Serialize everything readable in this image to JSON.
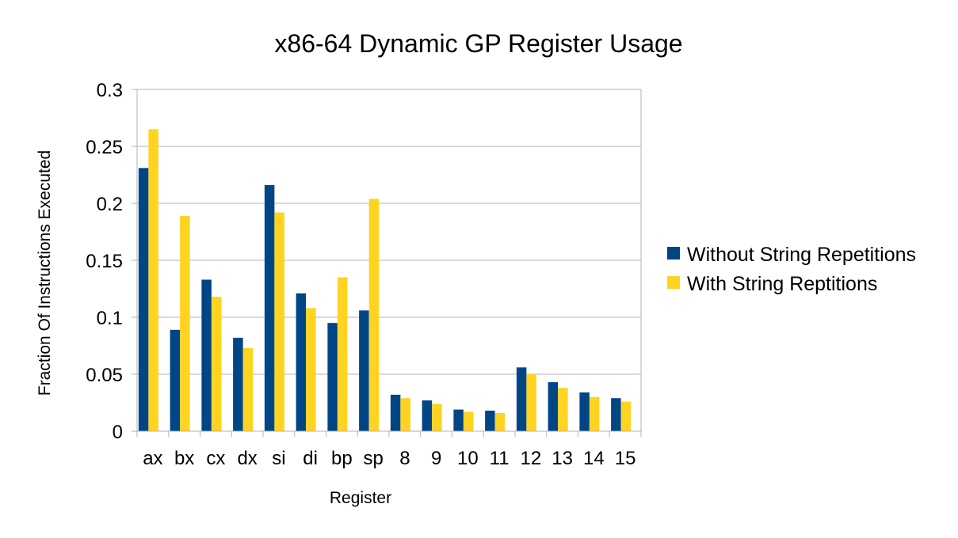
{
  "chart_data": {
    "type": "bar",
    "title": "x86-64 Dynamic GP Register Usage",
    "xlabel": "Register",
    "ylabel": "Fraction Of Instructions Executed",
    "ylim": [
      0,
      0.3
    ],
    "yticks": [
      0,
      0.05,
      0.1,
      0.15,
      0.2,
      0.25,
      0.3
    ],
    "ytick_labels": [
      "0",
      "0.05",
      "0.1",
      "0.15",
      "0.2",
      "0.25",
      "0.3"
    ],
    "categories": [
      "ax",
      "bx",
      "cx",
      "dx",
      "si",
      "di",
      "bp",
      "sp",
      "8",
      "9",
      "10",
      "11",
      "12",
      "13",
      "14",
      "15"
    ],
    "series": [
      {
        "name": "Without String Repetitions",
        "color": "#004586",
        "values": [
          0.231,
          0.089,
          0.133,
          0.082,
          0.216,
          0.121,
          0.095,
          0.106,
          0.032,
          0.027,
          0.019,
          0.018,
          0.056,
          0.043,
          0.034,
          0.029
        ]
      },
      {
        "name": "With String Reptitions",
        "color": "#ffd320",
        "values": [
          0.265,
          0.189,
          0.118,
          0.073,
          0.192,
          0.108,
          0.135,
          0.204,
          0.029,
          0.024,
          0.017,
          0.016,
          0.05,
          0.038,
          0.03,
          0.026
        ]
      }
    ],
    "grid": true,
    "legend_position": "right"
  }
}
